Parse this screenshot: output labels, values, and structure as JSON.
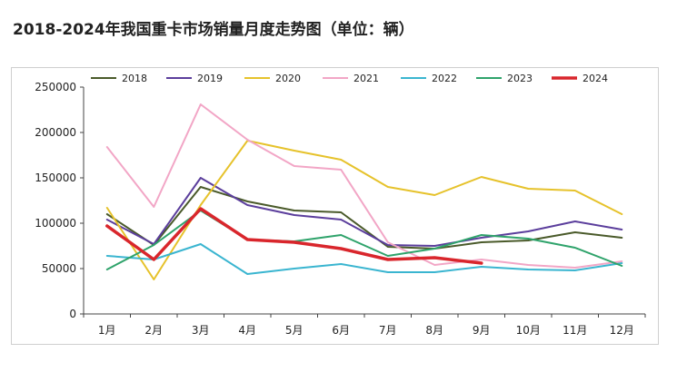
{
  "title": "2018-2024年我国重卡市场销量月度走势图（单位：辆）",
  "chart_data": {
    "type": "line",
    "title": "2018-2024年我国重卡市场销量月度走势图（单位：辆）",
    "categories": [
      "1月",
      "2月",
      "3月",
      "4月",
      "5月",
      "6月",
      "7月",
      "8月",
      "9月",
      "10月",
      "11月",
      "12月"
    ],
    "ylim": [
      0,
      250000
    ],
    "yticks": [
      "0",
      "50000",
      "100000",
      "150000",
      "200000",
      "250000"
    ],
    "ytick_values": [
      0,
      50000,
      100000,
      150000,
      200000,
      250000
    ],
    "legend_position": "top",
    "grid": false,
    "series": [
      {
        "name": "2018",
        "color": "#4a5a2a",
        "width": 2,
        "values": [
          110000,
          76000,
          140000,
          124000,
          114000,
          112000,
          74000,
          72000,
          79000,
          81000,
          90000,
          84000
        ]
      },
      {
        "name": "2019",
        "color": "#5b3e9c",
        "width": 2,
        "values": [
          104000,
          77000,
          150000,
          120000,
          109000,
          104000,
          76000,
          75000,
          84000,
          91000,
          102000,
          93000
        ]
      },
      {
        "name": "2020",
        "color": "#e6c22b",
        "width": 2,
        "values": [
          117000,
          38000,
          120000,
          191000,
          180000,
          170000,
          140000,
          131000,
          151000,
          138000,
          136000,
          110000
        ]
      },
      {
        "name": "2021",
        "color": "#f2a6c6",
        "width": 2,
        "values": [
          184000,
          118000,
          231000,
          192000,
          163000,
          159000,
          79000,
          54000,
          60000,
          54000,
          51000,
          58000
        ]
      },
      {
        "name": "2022",
        "color": "#3ab5d0",
        "width": 2,
        "values": [
          64000,
          60000,
          77000,
          44000,
          50000,
          55000,
          46000,
          46000,
          52000,
          49000,
          48000,
          56000
        ]
      },
      {
        "name": "2023",
        "color": "#2fa36b",
        "width": 2,
        "values": [
          49000,
          76000,
          114000,
          82000,
          80000,
          87000,
          64000,
          72000,
          87000,
          83000,
          73000,
          53000
        ]
      },
      {
        "name": "2024",
        "color": "#d9262c",
        "width": 3.5,
        "values": [
          97000,
          60000,
          116000,
          82000,
          79000,
          72000,
          60000,
          62000,
          56000,
          null,
          null,
          null
        ]
      }
    ]
  }
}
